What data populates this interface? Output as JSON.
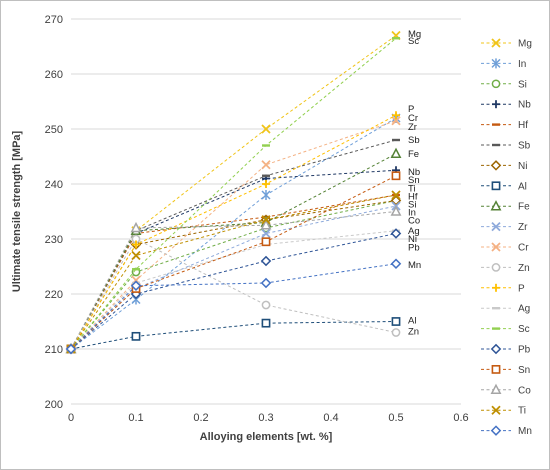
{
  "chart_data": {
    "type": "line",
    "xlabel": "Alloying elements [wt. %]",
    "ylabel": "Ultimate tensile strength [MPa]",
    "xlim": [
      0,
      0.6
    ],
    "ylim": [
      200,
      270
    ],
    "x_ticks": [
      "0",
      "0.1",
      "0.2",
      "0.3",
      "0.4",
      "0.5",
      "0.6"
    ],
    "y_ticks": [
      "200",
      "210",
      "220",
      "230",
      "240",
      "250",
      "260",
      "270"
    ],
    "grid": "horizontal",
    "legend_position": "right",
    "x": [
      0,
      0.1,
      0.3,
      0.5
    ],
    "series": [
      {
        "name": "Mg",
        "color": "#f0c419",
        "marker": "x",
        "values": [
          210,
          231.5,
          250.0,
          267.0
        ]
      },
      {
        "name": "In",
        "color": "#6f9fd8",
        "marker": "asterisk",
        "values": [
          210,
          219.0,
          238.0,
          252.0
        ]
      },
      {
        "name": "Si",
        "color": "#70ad47",
        "marker": "circle",
        "values": [
          210,
          224.0,
          232.0,
          237.0
        ]
      },
      {
        "name": "Nb",
        "color": "#1f3864",
        "marker": "plus",
        "values": [
          210,
          231.0,
          241.0,
          242.5
        ]
      },
      {
        "name": "Hf",
        "color": "#c55a11",
        "marker": "dash",
        "values": [
          210,
          231.0,
          234.0,
          238.0
        ]
      },
      {
        "name": "Sb",
        "color": "#595959",
        "marker": "dash",
        "values": [
          210,
          231.5,
          241.5,
          248.0
        ]
      },
      {
        "name": "Ni",
        "color": "#9c6500",
        "marker": "diamond",
        "values": [
          210,
          229.0,
          233.5,
          237.0
        ]
      },
      {
        "name": "Al",
        "color": "#1f4e79",
        "marker": "square",
        "values": [
          210,
          212.3,
          214.7,
          215.0
        ]
      },
      {
        "name": "Fe",
        "color": "#548235",
        "marker": "triangle",
        "values": [
          210,
          231.5,
          233.0,
          245.5
        ]
      },
      {
        "name": "Zr",
        "color": "#8eaadb",
        "marker": "x",
        "values": [
          210,
          221.0,
          231.0,
          236.0
        ]
      },
      {
        "name": "Cr",
        "color": "#f4b183",
        "marker": "x",
        "values": [
          210,
          222.5,
          243.5,
          251.5
        ]
      },
      {
        "name": "Zn",
        "color": "#bfbfbf",
        "marker": "circle",
        "values": [
          210,
          230.0,
          218.0,
          213.0
        ]
      },
      {
        "name": "P",
        "color": "#ffc000",
        "marker": "plus",
        "values": [
          210,
          229.0,
          240.0,
          252.5
        ]
      },
      {
        "name": "Ag",
        "color": "#c9c9c9",
        "marker": "dash",
        "values": [
          210,
          222.0,
          229.0,
          231.5
        ]
      },
      {
        "name": "Sc",
        "color": "#92d050",
        "marker": "dash",
        "values": [
          210,
          224.5,
          247.0,
          266.5
        ]
      },
      {
        "name": "Pb",
        "color": "#2f5597",
        "marker": "diamond",
        "values": [
          210,
          220.0,
          226.0,
          231.0
        ]
      },
      {
        "name": "Sn",
        "color": "#c55a11",
        "marker": "square",
        "values": [
          210,
          221.0,
          229.5,
          241.5
        ]
      },
      {
        "name": "Co",
        "color": "#a5a5a5",
        "marker": "triangle",
        "values": [
          210,
          232.0,
          232.5,
          235.0
        ]
      },
      {
        "name": "Ti",
        "color": "#bf8f00",
        "marker": "x",
        "values": [
          210,
          227.0,
          233.5,
          238.0
        ]
      },
      {
        "name": "Mn",
        "color": "#4472c4",
        "marker": "diamond",
        "values": [
          210,
          221.5,
          222.0,
          225.5
        ]
      }
    ],
    "end_labels": [
      {
        "text": "Mg",
        "value": 267.3
      },
      {
        "text": "Sc",
        "value": 266.0
      },
      {
        "text": "P",
        "value": 253.6
      },
      {
        "text": "Cr",
        "value": 252.0
      },
      {
        "text": "Zr",
        "value": 250.4
      },
      {
        "text": "Sb",
        "value": 248.0
      },
      {
        "text": "Fe",
        "value": 245.5
      },
      {
        "text": "Nb",
        "value": 242.2
      },
      {
        "text": "Sn",
        "value": 240.7
      },
      {
        "text": "Ti",
        "value": 239.2
      },
      {
        "text": "Hf",
        "value": 237.7
      },
      {
        "text": "Si",
        "value": 236.3
      },
      {
        "text": "In",
        "value": 234.8
      },
      {
        "text": "Co",
        "value": 233.4
      },
      {
        "text": "Ag",
        "value": 231.5
      },
      {
        "text": "Ni",
        "value": 230.0
      },
      {
        "text": "Pb",
        "value": 228.5
      },
      {
        "text": "Mn",
        "value": 225.3
      },
      {
        "text": "Al",
        "value": 215.2
      },
      {
        "text": "Zn",
        "value": 213.2
      }
    ]
  }
}
